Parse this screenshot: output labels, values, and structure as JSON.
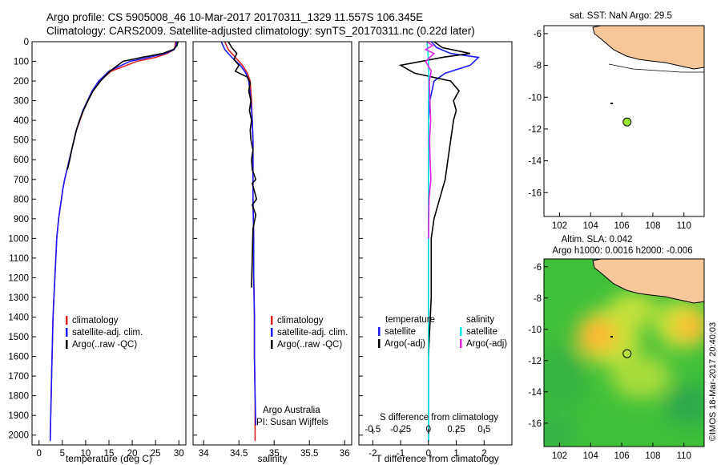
{
  "header": {
    "line1": "Argo profile: CS 5905008_46 10-Mar-2017 20170311_1329 11.557S 106.345E",
    "line2": "Climatology: CARS2009. Satellite-adjusted climatology: synTS_20170311.nc (0.22d later)"
  },
  "colors": {
    "climatology": "#e02020",
    "satellite": "#1a1aff",
    "argo": "#000000",
    "salinity_satellite": "#00e5e5",
    "salinity_argo": "#e020e0",
    "land": "#f7c79a",
    "marker": "#99e632"
  },
  "chart_data": [
    {
      "id": "temperature",
      "type": "line",
      "xlabel": "temperature (deg C)",
      "ylabel": "",
      "xlim": [
        -1.5,
        31.5
      ],
      "ylim": [
        0,
        2050
      ],
      "xticks": [
        0,
        5,
        10,
        15,
        20,
        25,
        30
      ],
      "yticks": [
        0,
        100,
        200,
        300,
        400,
        500,
        600,
        700,
        800,
        900,
        1000,
        1100,
        1200,
        1300,
        1400,
        1500,
        1600,
        1700,
        1800,
        1900,
        2000
      ],
      "legend": [
        "climatology",
        "satellite-adj. clim.",
        "Argo(..raw -QC)"
      ],
      "series": [
        {
          "name": "climatology",
          "color": "#e02020",
          "x": [
            29.3,
            29.2,
            29.0,
            27.5,
            25.0,
            21.0,
            15.5,
            13.0,
            11.5,
            10.5,
            9.5,
            8.8,
            8.0,
            7.5,
            7.0,
            6.5,
            6.0,
            5.5,
            5.1,
            4.8,
            4.5,
            4.2,
            4.0,
            3.8,
            3.6,
            3.4,
            3.2,
            3.0,
            2.9,
            2.8,
            2.7,
            2.6,
            2.5,
            2.4
          ],
          "y": [
            0,
            20,
            40,
            60,
            80,
            100,
            150,
            200,
            250,
            300,
            350,
            400,
            450,
            500,
            550,
            600,
            650,
            700,
            750,
            800,
            850,
            900,
            950,
            1000,
            1100,
            1200,
            1300,
            1400,
            1500,
            1600,
            1700,
            1800,
            1900,
            2030
          ]
        },
        {
          "name": "satellite-adj. clim.",
          "color": "#1a1aff",
          "x": [
            29.5,
            29.4,
            29.0,
            27.0,
            23.5,
            19.5,
            15.0,
            12.8,
            11.4,
            10.4,
            9.4,
            8.7,
            8.0,
            7.5,
            7.0,
            6.5,
            6.0,
            5.5,
            5.1,
            4.8,
            4.5,
            4.2,
            4.0,
            3.8,
            3.6,
            3.4,
            3.2,
            3.0,
            2.9,
            2.8,
            2.7,
            2.6,
            2.5,
            2.4
          ],
          "y": [
            0,
            20,
            40,
            60,
            80,
            100,
            150,
            200,
            250,
            300,
            350,
            400,
            450,
            500,
            550,
            600,
            650,
            700,
            750,
            800,
            850,
            900,
            950,
            1000,
            1100,
            1200,
            1300,
            1400,
            1500,
            1600,
            1700,
            1800,
            1900,
            2030
          ]
        },
        {
          "name": "Argo(..raw -QC)",
          "color": "#000000",
          "x": [
            29.8,
            29.6,
            28.8,
            26.5,
            22.0,
            18.0,
            15.2,
            13.2,
            11.6,
            10.5,
            9.5,
            8.7,
            8.0,
            7.5,
            7.0,
            6.6,
            6.1
          ],
          "y": [
            0,
            20,
            40,
            60,
            80,
            100,
            150,
            200,
            250,
            300,
            350,
            400,
            450,
            500,
            550,
            600,
            650
          ]
        }
      ]
    },
    {
      "id": "salinity",
      "type": "line",
      "xlabel": "salinity",
      "ylabel": "",
      "xlim": [
        33.85,
        36.1
      ],
      "ylim": [
        0,
        2050
      ],
      "xticks": [
        34,
        34.5,
        35,
        35.5,
        36
      ],
      "legend": [
        "climatology",
        "satellite-adj. clim.",
        "Argo(..raw -QC)"
      ],
      "notes": [
        "Argo Australia",
        "PI: Susan Wijffels"
      ],
      "series": [
        {
          "name": "climatology",
          "color": "#e02020",
          "x": [
            34.3,
            34.35,
            34.45,
            34.55,
            34.62,
            34.66,
            34.68,
            34.69,
            34.7,
            34.7,
            34.7,
            34.7,
            34.71,
            34.71,
            34.72,
            34.72,
            34.73,
            34.73
          ],
          "y": [
            0,
            40,
            80,
            120,
            160,
            200,
            300,
            400,
            500,
            600,
            700,
            800,
            1000,
            1200,
            1400,
            1600,
            1800,
            2030
          ]
        },
        {
          "name": "satellite-adj. clim.",
          "color": "#1a1aff",
          "x": [
            34.25,
            34.3,
            34.4,
            34.52,
            34.6,
            34.64,
            34.67,
            34.69,
            34.7,
            34.7,
            34.7,
            34.7,
            34.71,
            34.71,
            34.72,
            34.72,
            34.73,
            34.74
          ],
          "y": [
            0,
            40,
            80,
            120,
            160,
            200,
            300,
            400,
            500,
            600,
            700,
            800,
            1000,
            1200,
            1400,
            1600,
            1800,
            1950
          ]
        },
        {
          "name": "Argo(..raw -QC)",
          "color": "#000000",
          "x": [
            34.35,
            34.4,
            34.47,
            34.43,
            34.5,
            34.45,
            34.62,
            34.66,
            34.64,
            34.67,
            34.65,
            34.68,
            34.66,
            34.67,
            34.7,
            34.68,
            34.69,
            34.74,
            34.69,
            34.72,
            34.75,
            34.69,
            34.74,
            34.7,
            34.69,
            34.68
          ],
          "y": [
            0,
            30,
            60,
            90,
            120,
            150,
            180,
            210,
            250,
            300,
            350,
            400,
            450,
            500,
            550,
            600,
            650,
            700,
            720,
            760,
            800,
            830,
            880,
            950,
            1100,
            1250
          ]
        }
      ]
    },
    {
      "id": "difference",
      "type": "line",
      "xlabel": "T difference from climatology",
      "xlabel_top": "S difference from climatology",
      "xlim": [
        -2.5,
        3
      ],
      "ylim": [
        0,
        2050
      ],
      "xticks": [
        -2,
        -1,
        0,
        1,
        2
      ],
      "xticks_top": [
        -0.5,
        -0.25,
        0,
        0.25,
        0.5
      ],
      "legend_temperature": {
        "title": "temperature",
        "items": [
          "satellite",
          "Argo(-adj)"
        ]
      },
      "legend_salinity": {
        "title": "salinity",
        "items": [
          "satellite",
          "Argo(-adj)"
        ]
      },
      "series": [
        {
          "name": "temperature satellite",
          "color": "#1a1aff",
          "x": [
            0.1,
            0.3,
            0.8,
            1.8,
            1.5,
            0.6,
            0.2,
            0.05,
            0.0,
            0.0,
            0.0,
            0.0,
            0.0,
            0.0,
            0.0
          ],
          "y": [
            0,
            30,
            60,
            80,
            120,
            160,
            200,
            300,
            400,
            600,
            900,
            1200,
            1500,
            1800,
            2030
          ]
        },
        {
          "name": "temperature Argo(-adj)",
          "color": "#000000",
          "x": [
            0.2,
            0.5,
            1.5,
            0.5,
            -1.0,
            -0.5,
            0.8,
            1.1,
            0.9,
            1.0,
            0.9,
            0.8,
            0.7,
            0.6,
            0.4,
            0.2,
            0.1,
            0.1,
            0.1,
            0.0,
            0.0
          ],
          "y": [
            0,
            30,
            60,
            80,
            120,
            160,
            200,
            250,
            300,
            350,
            400,
            500,
            600,
            700,
            800,
            900,
            1000,
            1100,
            1300,
            1600,
            2030
          ]
        },
        {
          "name": "salinity satellite",
          "color": "#00e5e5",
          "x": [
            -0.05,
            -0.02,
            0.0,
            0.01,
            0.0,
            0.0,
            0.0,
            0.0,
            0.0,
            0.0,
            0.0,
            0.0,
            0.0
          ],
          "y": [
            0,
            50,
            100,
            200,
            300,
            500,
            700,
            900,
            1100,
            1400,
            1700,
            1900,
            2030
          ]
        },
        {
          "name": "salinity Argo(-adj)",
          "color": "#e020e0",
          "x": [
            -0.05,
            0.15,
            -0.1,
            0.2,
            -0.1,
            0.1,
            0.03,
            0.05,
            0.08,
            0.04,
            0.06,
            0.09,
            0.05,
            0.02,
            0.01,
            0.0
          ],
          "y": [
            0,
            20,
            40,
            60,
            100,
            150,
            200,
            300,
            400,
            500,
            600,
            700,
            750,
            800,
            900,
            1000
          ]
        }
      ]
    },
    {
      "id": "sst-map",
      "type": "scatter",
      "title": "sat. SST: NaN Argo: 29.5",
      "xlim": [
        101,
        111.3
      ],
      "ylim": [
        -17.5,
        -5.5
      ],
      "xticks": [
        102,
        104,
        106,
        108,
        110
      ],
      "yticks": [
        -6,
        -8,
        -10,
        -12,
        -14,
        -16
      ],
      "points": [
        {
          "x": 106.345,
          "y": -11.557
        }
      ]
    },
    {
      "id": "sla-map",
      "type": "heatmap",
      "title": "Altim. SLA: 0.042",
      "subtitle": "Argo h1000: 0.0016 h2000: -0.006",
      "xlim": [
        101,
        111.3
      ],
      "ylim": [
        -17.5,
        -5.5
      ],
      "xticks": [
        102,
        104,
        106,
        108,
        110
      ],
      "yticks": [
        -6,
        -8,
        -10,
        -12,
        -14,
        -16
      ],
      "points": [
        {
          "x": 106.345,
          "y": -11.557
        }
      ]
    }
  ],
  "credit": "©IMOS 18-Mar-2017 20:40:03"
}
